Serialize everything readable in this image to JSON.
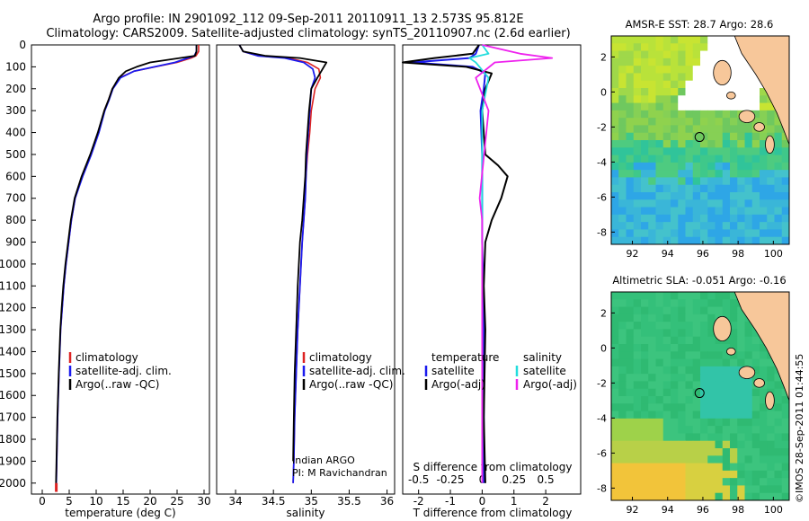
{
  "header": {
    "line1": "Argo profile: IN 2901092_112 09-Sep-2011 20110911_13 2.573S 95.812E",
    "line2": "Climatology: CARS2009. Satellite-adjusted climatology: synTS_20110907.nc (2.6d earlier)"
  },
  "colors": {
    "climatology": "#dd2222",
    "satellite": "#1a1aee",
    "argo": "#000000",
    "sal_satellite": "#22dddd",
    "sal_argo": "#ee22ee",
    "land": "#f7c79a",
    "missing": "#ffffff"
  },
  "depth_axis": {
    "ticks": [
      0,
      100,
      200,
      300,
      400,
      500,
      600,
      700,
      800,
      900,
      1000,
      1100,
      1200,
      1300,
      1400,
      1500,
      1600,
      1700,
      1800,
      1900,
      2000
    ],
    "range": [
      0,
      2050
    ]
  },
  "panel_temp": {
    "xlabel": "temperature (deg C)",
    "xticks": [
      "0",
      "5",
      "10",
      "15",
      "20",
      "25",
      "30"
    ],
    "legend": [
      "climatology",
      "satellite-adj. clim.",
      "Argo(..raw -QC)"
    ]
  },
  "panel_sal": {
    "xlabel": "salinity",
    "xticks": [
      "34",
      "34.5",
      "35",
      "35.5",
      "36"
    ],
    "legend": [
      "climatology",
      "satellite-adj. clim.",
      "Argo(..raw -QC)"
    ],
    "note1": "Indian ARGO",
    "note2": "PI: M Ravichandran"
  },
  "panel_diff": {
    "xlabel_bottom": "T difference from climatology",
    "xlabel_top": "S difference from climatology",
    "xticks_bottom": [
      "-2",
      "-1",
      "0",
      "1",
      "2"
    ],
    "xticks_top": [
      "-0.5",
      "-0.25",
      "0",
      "0.25",
      "0.5"
    ],
    "legend_temp_title": "temperature",
    "legend_sal_title": "salinity",
    "legend_satellite": "satellite",
    "legend_argo": "Argo(-adj)"
  },
  "map_sst": {
    "title": "AMSR-E SST: 28.7 Argo: 28.6",
    "yticks": [
      "2",
      "0",
      "-2",
      "-4",
      "-6",
      "-8"
    ],
    "xticks": [
      "92",
      "94",
      "96",
      "98",
      "100"
    ]
  },
  "map_sla": {
    "title": "Altimetric SLA: -0.051 Argo: -0.16",
    "yticks": [
      "2",
      "0",
      "-2",
      "-4",
      "-6",
      "-8"
    ],
    "xticks": [
      "92",
      "94",
      "96",
      "98",
      "100"
    ]
  },
  "credit": "©IMOS 28-Sep-2011 01:44:55",
  "chart_data": [
    {
      "type": "line",
      "xlabel": "temperature (deg C)",
      "ylabel": "",
      "xlim": [
        -2,
        31
      ],
      "ylim": [
        2050,
        0
      ],
      "series": [
        {
          "name": "climatology",
          "x": [
            29.0,
            29.0,
            28.5,
            27.6,
            25.0,
            21.0,
            17.0,
            14.3,
            13.0,
            12.3,
            11.5,
            10.4,
            9.0,
            7.4,
            6.1,
            5.4,
            4.9,
            4.4,
            4.0,
            3.7,
            3.4,
            3.1,
            2.85,
            2.6
          ],
          "y": [
            0,
            30,
            50,
            60,
            80,
            100,
            120,
            150,
            200,
            250,
            300,
            400,
            500,
            600,
            700,
            800,
            900,
            1000,
            1100,
            1200,
            1300,
            1500,
            1700,
            2000
          ]
        },
        {
          "name": "satellite-adj. clim.",
          "x": [
            28.6,
            28.6,
            28.2,
            27.0,
            24.6,
            20.8,
            17.0,
            14.5,
            13.1,
            12.4,
            11.6,
            10.5,
            9.1,
            7.5,
            6.1,
            5.4,
            4.9,
            4.4,
            4.0,
            3.7,
            3.4,
            3.1,
            2.85,
            2.6
          ],
          "y": [
            0,
            30,
            50,
            60,
            80,
            100,
            120,
            150,
            200,
            250,
            300,
            400,
            500,
            600,
            700,
            800,
            900,
            1000,
            1100,
            1200,
            1300,
            1500,
            1700,
            2000
          ]
        },
        {
          "name": "Argo(..raw -QC)",
          "x": [
            28.6,
            28.6,
            28.3,
            25.5,
            20.0,
            17.5,
            15.5,
            14.2,
            13.0,
            12.3,
            11.5,
            10.3,
            8.9,
            7.3,
            6.0,
            5.3,
            4.8,
            4.3,
            3.9,
            3.6,
            3.35,
            3.05,
            2.8,
            2.55
          ],
          "y": [
            0,
            30,
            50,
            60,
            80,
            100,
            120,
            150,
            200,
            250,
            300,
            400,
            500,
            600,
            700,
            800,
            900,
            1000,
            1100,
            1200,
            1300,
            1500,
            1700,
            2000
          ]
        }
      ]
    },
    {
      "type": "line",
      "xlabel": "salinity",
      "ylabel": "",
      "xlim": [
        33.75,
        36.1
      ],
      "ylim": [
        2050,
        0
      ],
      "series": [
        {
          "name": "climatology",
          "x": [
            34.05,
            34.1,
            34.3,
            34.7,
            34.95,
            35.1,
            35.12,
            35.05,
            35.0,
            34.98,
            34.95,
            34.93,
            34.92,
            34.9,
            34.88,
            34.85,
            34.82,
            34.8,
            34.78,
            34.77,
            34.76
          ],
          "y": [
            0,
            30,
            50,
            60,
            80,
            110,
            150,
            200,
            300,
            400,
            500,
            600,
            700,
            800,
            900,
            1100,
            1300,
            1500,
            1700,
            1900,
            2000
          ]
        },
        {
          "name": "satellite-adj. clim.",
          "x": [
            34.05,
            34.1,
            34.3,
            34.65,
            34.9,
            35.02,
            35.05,
            35.0,
            34.98,
            34.96,
            34.94,
            34.93,
            34.92,
            34.9,
            34.88,
            34.85,
            34.82,
            34.8,
            34.78,
            34.77,
            34.76
          ],
          "y": [
            0,
            30,
            50,
            60,
            80,
            110,
            150,
            200,
            300,
            400,
            500,
            600,
            700,
            800,
            900,
            1100,
            1300,
            1500,
            1700,
            1900,
            2000
          ]
        },
        {
          "name": "Argo(..raw -QC)",
          "x": [
            34.05,
            34.1,
            34.4,
            34.85,
            35.2,
            35.08,
            35.0,
            34.97,
            34.95,
            34.93,
            34.92,
            34.9,
            34.88,
            34.85,
            34.82,
            34.8,
            34.78,
            34.77,
            34.76
          ],
          "y": [
            0,
            30,
            50,
            60,
            80,
            150,
            200,
            300,
            400,
            500,
            600,
            700,
            800,
            900,
            1100,
            1300,
            1500,
            1700,
            1900
          ]
        }
      ]
    },
    {
      "type": "line",
      "xlabel": "T difference from climatology",
      "ylabel": "",
      "xlim": [
        -2.5,
        3.1
      ],
      "ylim": [
        2050,
        0
      ],
      "series": [
        {
          "name": "satellite",
          "x": [
            -0.1,
            -0.2,
            -0.4,
            -2.2,
            -0.3,
            0.1,
            0.05,
            -0.05,
            0.0,
            0.0,
            0.0,
            0.05,
            0.05,
            0.05,
            0.05,
            0.05
          ],
          "y": [
            0,
            40,
            60,
            80,
            100,
            130,
            200,
            300,
            500,
            700,
            900,
            1200,
            1500,
            1700,
            1900,
            2000
          ]
        },
        {
          "name": "Argo(-adj)",
          "x": [
            -0.1,
            -0.3,
            -1.5,
            -2.5,
            -0.5,
            0.3,
            0.1,
            0.0,
            0.1,
            0.5,
            0.8,
            0.6,
            0.3,
            0.1,
            0.05,
            0.1,
            0.05,
            0.1
          ],
          "y": [
            0,
            40,
            60,
            80,
            100,
            130,
            200,
            300,
            500,
            550,
            600,
            700,
            800,
            900,
            1100,
            1300,
            1700,
            2000
          ]
        }
      ]
    },
    {
      "type": "line",
      "xlabel": "S difference from climatology",
      "ylabel": "",
      "xlim": [
        -0.625,
        0.775
      ],
      "ylim": [
        2050,
        0
      ],
      "series": [
        {
          "name": "satellite",
          "x": [
            0.0,
            0.05,
            -0.1,
            -0.05,
            0.05,
            0.0,
            0.0,
            0.0,
            0.0,
            0.0,
            0.0
          ],
          "y": [
            0,
            40,
            60,
            80,
            150,
            300,
            500,
            800,
            1200,
            1600,
            2000
          ]
        },
        {
          "name": "Argo(-adj)",
          "x": [
            0.0,
            0.3,
            0.55,
            0.1,
            -0.05,
            0.05,
            -0.02,
            0.0,
            0.0,
            0.0,
            0.0
          ],
          "y": [
            0,
            40,
            60,
            80,
            150,
            300,
            700,
            800,
            1200,
            1600,
            2000
          ]
        }
      ]
    }
  ]
}
